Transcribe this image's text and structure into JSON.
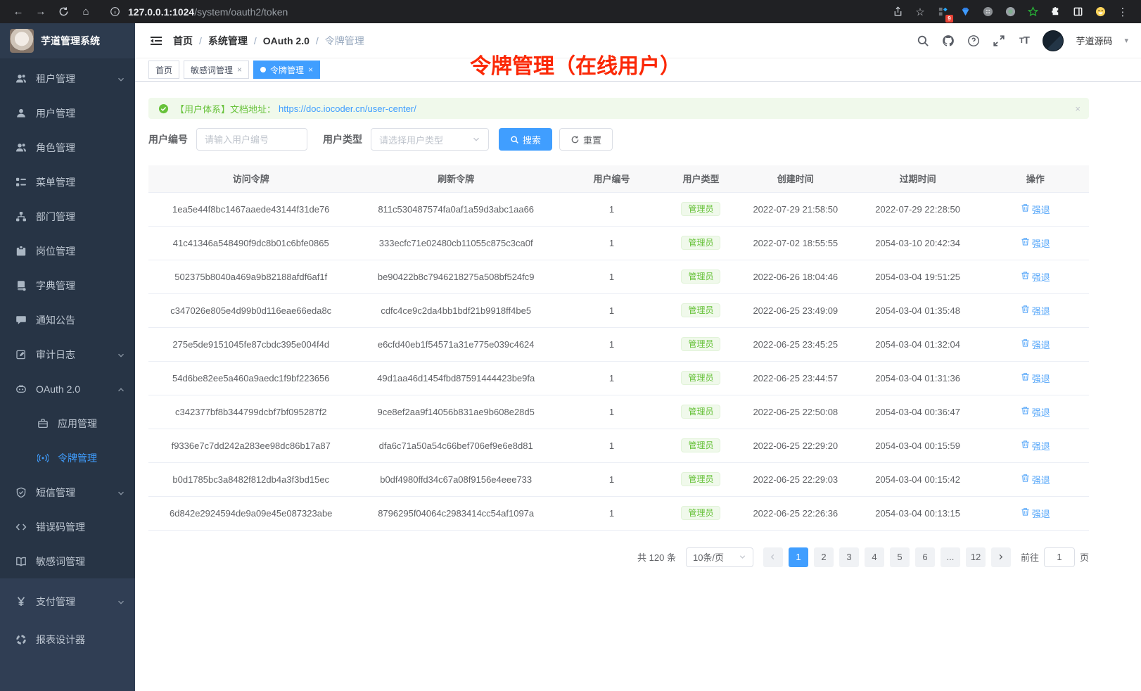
{
  "browser": {
    "url_host": "127.0.0.1:1024",
    "url_path": "/system/oauth2/token",
    "left_icons": [
      "back-icon",
      "forward-icon",
      "reload-icon",
      "home-icon",
      "info-icon"
    ],
    "right_icons": [
      "share-icon",
      "bookmark-star-icon",
      "extension-badge-icon",
      "gem-icon",
      "command-circle-icon",
      "record-circle-icon",
      "green-star-icon",
      "puzzle-icon",
      "window-icon",
      "emoji-icon",
      "menu-dots-icon"
    ],
    "extension_badge": "9"
  },
  "sidebar": {
    "title": "芋道管理系统",
    "items": [
      {
        "id": "tenant",
        "label": "租户管理",
        "icon": "tenant-icon",
        "chevron": "down"
      },
      {
        "id": "user",
        "label": "用户管理",
        "icon": "user-icon"
      },
      {
        "id": "role",
        "label": "角色管理",
        "icon": "role-icon"
      },
      {
        "id": "menu",
        "label": "菜单管理",
        "icon": "menu-tree-icon"
      },
      {
        "id": "dept",
        "label": "部门管理",
        "icon": "dept-icon"
      },
      {
        "id": "post",
        "label": "岗位管理",
        "icon": "post-icon"
      },
      {
        "id": "dict",
        "label": "字典管理",
        "icon": "dict-icon"
      },
      {
        "id": "notice",
        "label": "通知公告",
        "icon": "notice-icon"
      },
      {
        "id": "audit",
        "label": "审计日志",
        "icon": "audit-icon",
        "chevron": "down"
      },
      {
        "id": "oauth2",
        "label": "OAuth 2.0",
        "icon": "oauth-icon",
        "chevron": "up"
      },
      {
        "id": "oauth2-app",
        "label": "应用管理",
        "icon": "app-icon",
        "indent": true
      },
      {
        "id": "oauth2-token",
        "label": "令牌管理",
        "icon": "token-icon",
        "indent": true,
        "active": true
      },
      {
        "id": "sms",
        "label": "短信管理",
        "icon": "sms-shield-icon",
        "chevron": "down"
      },
      {
        "id": "errcode",
        "label": "错误码管理",
        "icon": "errorcode-icon"
      },
      {
        "id": "sensitive",
        "label": "敏感词管理",
        "icon": "sensitive-book-icon"
      },
      {
        "id": "pay",
        "label": "支付管理",
        "icon": "pay-yen-icon",
        "chevron": "down",
        "section": "light"
      },
      {
        "id": "report",
        "label": "报表设计器",
        "icon": "report-ring-icon",
        "section": "light"
      }
    ]
  },
  "navbar": {
    "breadcrumb": [
      "首页",
      "系统管理",
      "OAuth 2.0",
      "令牌管理"
    ],
    "icons": [
      "search-icon",
      "github-icon",
      "help-icon",
      "fullscreen-icon",
      "fontsize-icon"
    ],
    "username": "芋道源码"
  },
  "tabs": [
    {
      "label": "首页"
    },
    {
      "label": "敏感词管理",
      "closable": true
    },
    {
      "label": "令牌管理",
      "closable": true,
      "active": true
    }
  ],
  "annotation": "令牌管理（在线用户）",
  "alert": {
    "text": "【用户体系】文档地址：",
    "link": "https://doc.iocoder.cn/user-center/",
    "close": "×"
  },
  "filters": {
    "user_id_label": "用户编号",
    "user_id_placeholder": "请输入用户编号",
    "user_type_label": "用户类型",
    "user_type_placeholder": "请选择用户类型",
    "search_label": "搜索",
    "reset_label": "重置"
  },
  "table": {
    "columns": [
      "访问令牌",
      "刷新令牌",
      "用户编号",
      "用户类型",
      "创建时间",
      "过期时间",
      "操作"
    ],
    "action_label": "强退",
    "rows": [
      {
        "access": "1ea5e44f8bc1467aaede43144f31de76",
        "refresh": "811c530487574fa0af1a59d3abc1aa66",
        "user_id": "1",
        "user_type": "管理员",
        "created": "2022-07-29 21:58:50",
        "expires": "2022-07-29 22:28:50"
      },
      {
        "access": "41c41346a548490f9dc8b01c6bfe0865",
        "refresh": "333ecfc71e02480cb11055c875c3ca0f",
        "user_id": "1",
        "user_type": "管理员",
        "created": "2022-07-02 18:55:55",
        "expires": "2054-03-10 20:42:34"
      },
      {
        "access": "502375b8040a469a9b82188afdf6af1f",
        "refresh": "be90422b8c7946218275a508bf524fc9",
        "user_id": "1",
        "user_type": "管理员",
        "created": "2022-06-26 18:04:46",
        "expires": "2054-03-04 19:51:25"
      },
      {
        "access": "c347026e805e4d99b0d116eae66eda8c",
        "refresh": "cdfc4ce9c2da4bb1bdf21b9918ff4be5",
        "user_id": "1",
        "user_type": "管理员",
        "created": "2022-06-25 23:49:09",
        "expires": "2054-03-04 01:35:48"
      },
      {
        "access": "275e5de9151045fe87cbdc395e004f4d",
        "refresh": "e6cfd40eb1f54571a31e775e039c4624",
        "user_id": "1",
        "user_type": "管理员",
        "created": "2022-06-25 23:45:25",
        "expires": "2054-03-04 01:32:04"
      },
      {
        "access": "54d6be82ee5a460a9aedc1f9bf223656",
        "refresh": "49d1aa46d1454fbd87591444423be9fa",
        "user_id": "1",
        "user_type": "管理员",
        "created": "2022-06-25 23:44:57",
        "expires": "2054-03-04 01:31:36"
      },
      {
        "access": "c342377bf8b344799dcbf7bf095287f2",
        "refresh": "9ce8ef2aa9f14056b831ae9b608e28d5",
        "user_id": "1",
        "user_type": "管理员",
        "created": "2022-06-25 22:50:08",
        "expires": "2054-03-04 00:36:47"
      },
      {
        "access": "f9336e7c7dd242a283ee98dc86b17a87",
        "refresh": "dfa6c71a50a54c66bef706ef9e6e8d81",
        "user_id": "1",
        "user_type": "管理员",
        "created": "2022-06-25 22:29:20",
        "expires": "2054-03-04 00:15:59"
      },
      {
        "access": "b0d1785bc3a8482f812db4a3f3bd15ec",
        "refresh": "b0df4980ffd34c67a08f9156e4eee733",
        "user_id": "1",
        "user_type": "管理员",
        "created": "2022-06-25 22:29:03",
        "expires": "2054-03-04 00:15:42"
      },
      {
        "access": "6d842e2924594de9a09e45e087323abe",
        "refresh": "8796295f04064c2983414cc54af1097a",
        "user_id": "1",
        "user_type": "管理员",
        "created": "2022-06-25 22:26:36",
        "expires": "2054-03-04 00:13:15"
      }
    ]
  },
  "pagination": {
    "total_text": "共 120 条",
    "page_size": "10条/页",
    "pages": [
      "1",
      "2",
      "3",
      "4",
      "5",
      "6",
      "...",
      "12"
    ],
    "active_page": "1",
    "goto_label": "前往",
    "goto_value": "1",
    "goto_suffix": "页"
  },
  "colors": {
    "accent_blue": "#409eff",
    "success_green": "#67c23a",
    "annotation_red": "#fb2806",
    "sidebar_bg": "#273445",
    "sidebar_light_bg": "#303e54",
    "table_border": "#ebeef5"
  }
}
